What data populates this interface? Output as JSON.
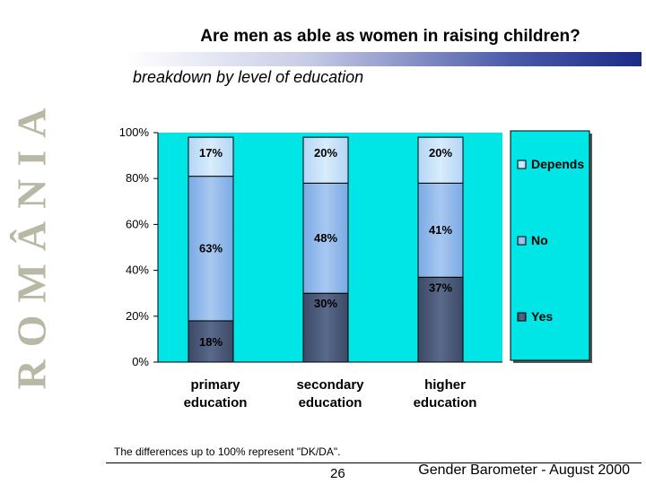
{
  "side_text": "ROMÂNIA",
  "title": "Are men as able as women in raising children?",
  "subtitle": "breakdown by level of education",
  "footnote": "The differences up to 100% represent \"DK/DA\".",
  "page_number": "26",
  "footer_credit": "Gender Barometer - August 2000",
  "colors": {
    "plot_background": "#00e5e5",
    "yes": "#5a6a8a",
    "no": "#a8c8f0",
    "depends": "#d8ecfc",
    "legend_background": "#00e5e5",
    "title_bar": "#1c2a86"
  },
  "chart_data": {
    "type": "bar",
    "stacked": true,
    "categories": [
      [
        "primary",
        "education"
      ],
      [
        "secondary",
        "education"
      ],
      [
        "higher",
        "education"
      ]
    ],
    "series": [
      {
        "name": "Yes",
        "values": [
          18,
          30,
          37
        ],
        "labels": [
          "18%",
          "30%",
          "37%"
        ]
      },
      {
        "name": "No",
        "values": [
          63,
          48,
          41
        ],
        "labels": [
          "63%",
          "48%",
          "41%"
        ]
      },
      {
        "name": "Depends",
        "values": [
          17,
          20,
          20
        ],
        "labels": [
          "17%",
          "20%",
          "20%"
        ]
      }
    ],
    "ylim": [
      0,
      100
    ],
    "yticks": [
      "0%",
      "20%",
      "40%",
      "60%",
      "80%",
      "100%"
    ],
    "legend": [
      "Depends",
      "No",
      "Yes"
    ],
    "legend_placement": "right"
  }
}
